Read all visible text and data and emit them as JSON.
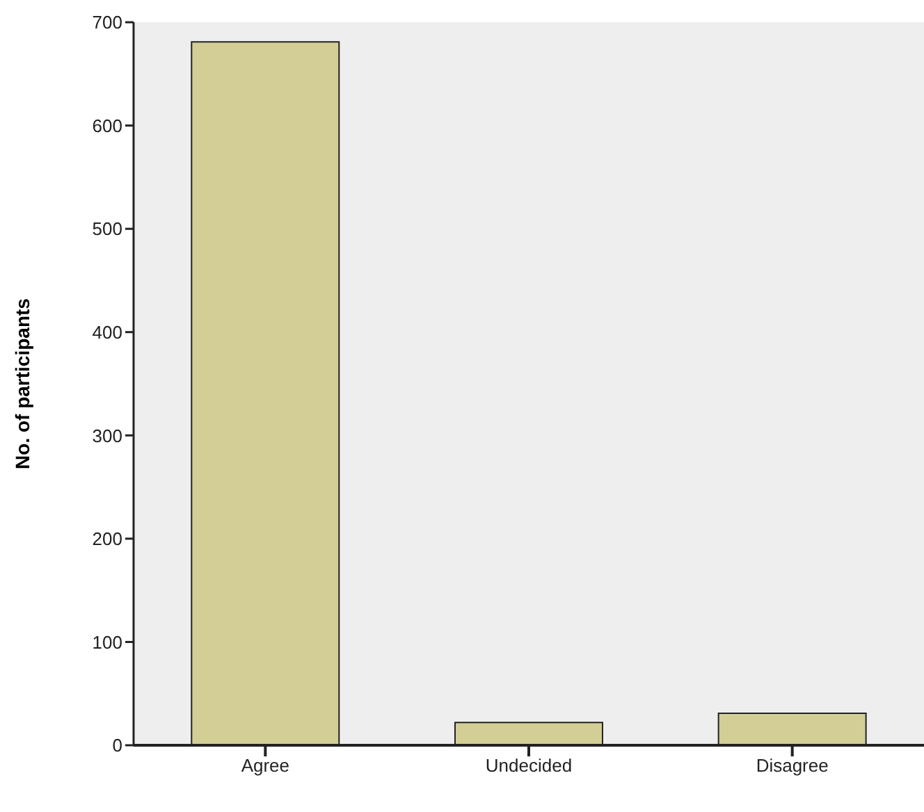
{
  "chart_data": {
    "type": "bar",
    "ylabel": "No. of participants",
    "categories": [
      "Agree",
      "Undecided",
      "Disagree"
    ],
    "values": [
      681,
      22,
      31
    ],
    "color": "#d2ce96",
    "ylim": [
      0,
      700
    ],
    "yticks": [
      0,
      100,
      200,
      300,
      400,
      500,
      600,
      700
    ],
    "grid": false
  }
}
